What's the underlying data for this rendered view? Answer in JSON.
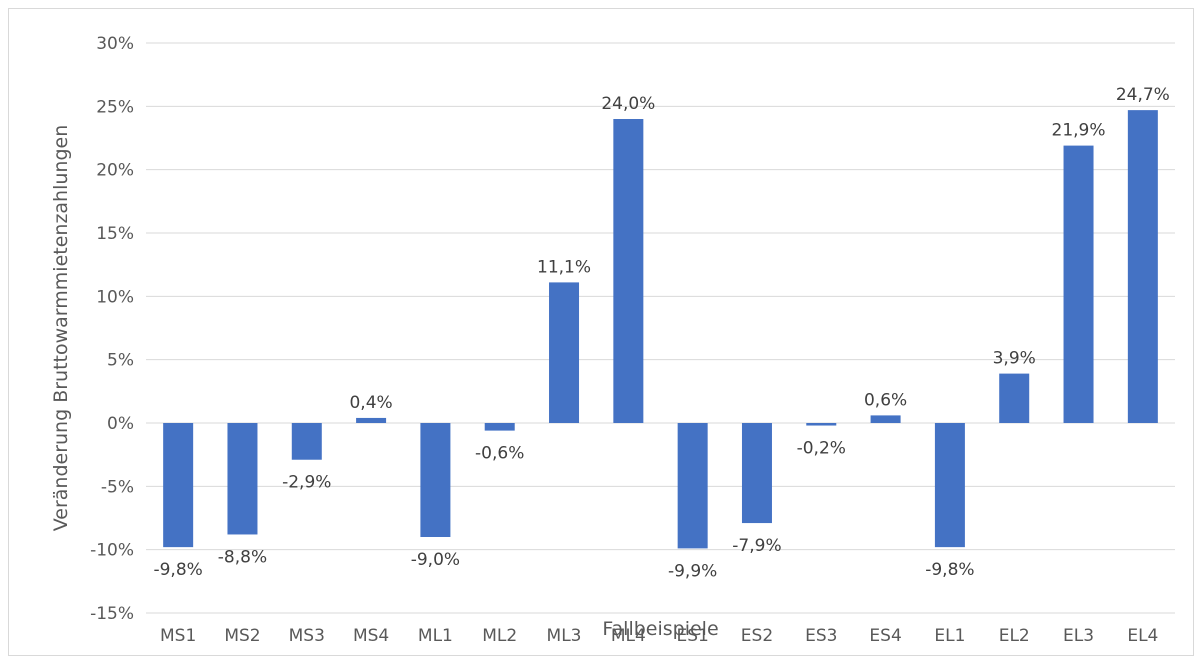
{
  "chart_data": {
    "type": "bar",
    "title": "",
    "xlabel": "Fallbeispiele",
    "ylabel": "Veränderung Bruttowarmmietenzahlungen",
    "categories": [
      "MS1",
      "MS2",
      "MS3",
      "MS4",
      "ML1",
      "ML2",
      "ML3",
      "ML4",
      "ES1",
      "ES2",
      "ES3",
      "ES4",
      "EL1",
      "EL2",
      "EL3",
      "EL4"
    ],
    "values": [
      -9.8,
      -8.8,
      -2.9,
      0.4,
      -9.0,
      -0.6,
      11.1,
      24.0,
      -9.9,
      -7.9,
      -0.2,
      0.6,
      -9.8,
      3.9,
      21.9,
      24.7
    ],
    "data_labels": [
      "-9,8%",
      "-8,8%",
      "-2,9%",
      "0,4%",
      "-9,0%",
      "-0,6%",
      "11,1%",
      "24,0%",
      "-9,9%",
      "-7,9%",
      "-0,2%",
      "0,6%",
      "-9,8%",
      "3,9%",
      "21,9%",
      "24,7%"
    ],
    "y_ticks": [
      30,
      25,
      20,
      15,
      10,
      5,
      0,
      -5,
      -10,
      -15
    ],
    "y_tick_labels": [
      "30%",
      "25%",
      "20%",
      "15%",
      "10%",
      "5%",
      "0%",
      "-5%",
      "-10%",
      "-15%"
    ],
    "ylim": [
      -15,
      30
    ],
    "grid": true,
    "legend": "none",
    "bar_color": "#4472c4",
    "grid_color": "#d9d9d9"
  }
}
